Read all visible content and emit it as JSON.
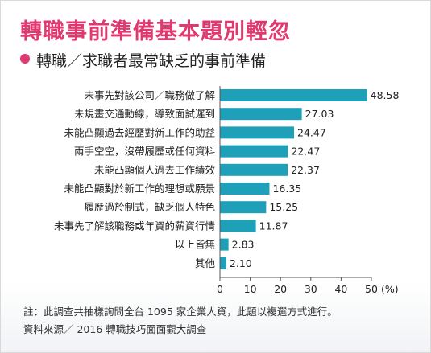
{
  "title": "轉職事前準備基本題別輕忽",
  "subtitle": "轉職／求職者最常缺乏的事前準備",
  "footnote1": "註：此調查共抽樣詢問全台 1095 家企業人資，此題以複選方式進行。",
  "footnote2": "資料來源／ 2016 轉職技巧面面觀大調查",
  "colors": {
    "accent": "#e0396f",
    "bar": "#1ea0b8"
  },
  "chart_data": {
    "type": "bar",
    "orientation": "horizontal",
    "categories": [
      "未事先對該公司／職務做了解",
      "未規畫交通動線，導致面試遲到",
      "未能凸顯過去經歷對新工作的助益",
      "兩手空空，沒帶履歷或任何資料",
      "未能凸顯個人過去工作績效",
      "未能凸顯對於新工作的理想或願景",
      "履歷過於制式，缺乏個人特色",
      "未事先了解該職務或年資的薪資行情",
      "以上皆無",
      "其他"
    ],
    "values": [
      48.58,
      27.03,
      24.47,
      22.47,
      22.37,
      16.35,
      15.25,
      11.87,
      2.83,
      2.1
    ],
    "value_labels": [
      "48.58",
      "27.03",
      "24.47",
      "22.47",
      "22.37",
      "16.35",
      "15.25",
      "11.87",
      "2.83",
      "2.10"
    ],
    "xticks": [
      "0",
      "10",
      "20",
      "30",
      "40",
      "50"
    ],
    "xunit": "(%)",
    "xlim": [
      0,
      50
    ]
  }
}
